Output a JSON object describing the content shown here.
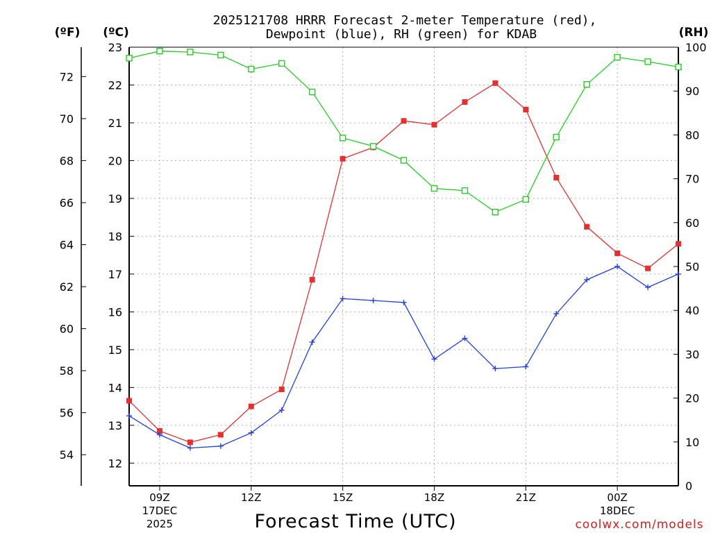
{
  "chart_data": {
    "type": "line",
    "title_line1": "2025121708 HRRR Forecast 2-meter Temperature (red),",
    "title_line2": "Dewpoint (blue), RH (green) for KDAB",
    "units": {
      "fahrenheit": "(ºF)",
      "celsius": "(ºC)",
      "rh": "(RH)"
    },
    "xlabel": "Forecast Time (UTC)",
    "credit": "coolwx.com/models",
    "x_hours": [
      0,
      1,
      2,
      3,
      4,
      5,
      6,
      7,
      8,
      9,
      10,
      11,
      12,
      13,
      14,
      15,
      16,
      17,
      18
    ],
    "x_ticks": [
      {
        "hour": 1,
        "label": "09Z",
        "date": "17DEC",
        "year": "2025"
      },
      {
        "hour": 4,
        "label": "12Z"
      },
      {
        "hour": 7,
        "label": "15Z"
      },
      {
        "hour": 10,
        "label": "18Z"
      },
      {
        "hour": 13,
        "label": "21Z"
      },
      {
        "hour": 16,
        "label": "00Z",
        "date": "18DEC"
      }
    ],
    "celsius_axis": {
      "range": [
        11.4,
        23.0
      ],
      "ticks": [
        "12",
        "13",
        "14",
        "15",
        "16",
        "17",
        "18",
        "19",
        "20",
        "21",
        "22",
        "23"
      ]
    },
    "fahrenheit_axis": {
      "ticks": [
        "54",
        "56",
        "58",
        "60",
        "62",
        "64",
        "66",
        "68",
        "70",
        "72"
      ]
    },
    "rh_axis": {
      "range": [
        0,
        100
      ],
      "ticks": [
        "0",
        "10",
        "20",
        "30",
        "40",
        "50",
        "60",
        "70",
        "80",
        "90",
        "100"
      ]
    },
    "series": [
      {
        "name": "Temperature",
        "axis": "celsius",
        "color": "#e53030",
        "marker": "filled-square",
        "values": [
          13.65,
          12.85,
          12.55,
          12.75,
          13.5,
          13.95,
          16.85,
          20.05,
          20.35,
          21.05,
          20.95,
          21.55,
          22.05,
          21.35,
          19.55,
          18.25,
          17.55,
          17.15,
          17.8
        ]
      },
      {
        "name": "Dewpoint",
        "axis": "celsius",
        "color": "#2040e0",
        "marker": "plus",
        "values": [
          13.25,
          12.75,
          12.4,
          12.45,
          12.8,
          13.4,
          15.2,
          16.35,
          16.3,
          16.25,
          14.75,
          15.3,
          14.5,
          14.55,
          15.95,
          16.85,
          17.2,
          16.65,
          17.0
        ]
      },
      {
        "name": "RH",
        "axis": "rh",
        "color": "#20d020",
        "marker": "open-square",
        "values": [
          97.5,
          99.1,
          98.9,
          98.2,
          95.0,
          96.3,
          89.8,
          79.3,
          77.4,
          74.2,
          67.8,
          67.3,
          62.4,
          65.3,
          79.5,
          91.5,
          97.7,
          96.7,
          95.5
        ]
      }
    ]
  }
}
